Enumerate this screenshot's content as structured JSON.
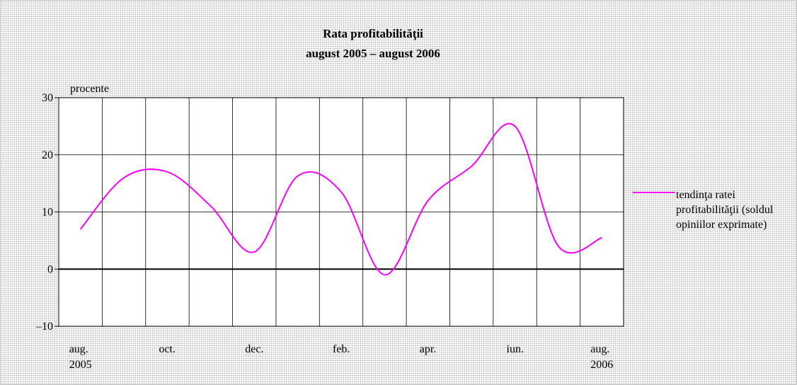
{
  "chart_data": {
    "type": "line",
    "title": "Rata profitabilităţii",
    "subtitle": "august 2005 – august 2006",
    "y_label": "procente",
    "categories": [
      "aug.\n2005",
      null,
      "oct.",
      null,
      "dec.",
      null,
      "feb.",
      null,
      "apr.",
      null,
      "iun.",
      null,
      "aug.\n2006"
    ],
    "series": [
      {
        "name": "tendinţa ratei profitabilităţii (soldul opiniilor exprimate)",
        "color": "#ff00ff",
        "values": [
          7,
          16,
          17,
          11,
          3,
          16.3,
          13.5,
          -1,
          12,
          18,
          25,
          4,
          5.5
        ]
      }
    ],
    "ylim": [
      -10,
      30
    ],
    "yticks": [
      {
        "value": -10,
        "label": "–10"
      },
      0,
      10,
      20,
      30
    ],
    "grid": true,
    "legend": "right"
  }
}
